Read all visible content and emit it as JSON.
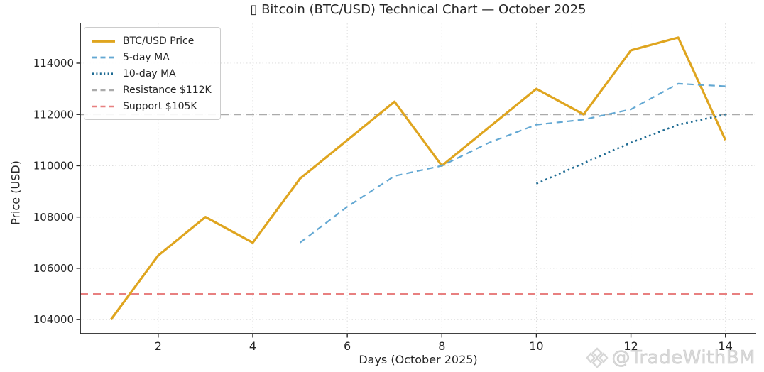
{
  "page": {
    "title": "▯ Bitcoin (BTC/USD) Technical Chart — October 2025"
  },
  "watermark": {
    "text": "@TradeWithBM",
    "icon": "diamond-logo"
  },
  "chart_data": {
    "type": "line",
    "title": "▯ Bitcoin (BTC/USD) Technical Chart — October 2025",
    "xlabel": "Days (October 2025)",
    "ylabel": "Price (USD)",
    "xlim": [
      0.35,
      14.65
    ],
    "ylim": [
      103450,
      115550
    ],
    "x_ticks": [
      2,
      4,
      6,
      8,
      10,
      12,
      14
    ],
    "y_ticks": [
      104000,
      106000,
      108000,
      110000,
      112000,
      114000
    ],
    "grid": true,
    "grid_color": "#cfcfcf",
    "axis_color": "#262626",
    "legend_position": "upper left",
    "series": [
      {
        "name": "BTC/USD Price",
        "color": "#DFA51F",
        "style": "solid",
        "width": 3.2,
        "x": [
          1,
          2,
          3,
          4,
          5,
          6,
          7,
          8,
          9,
          10,
          11,
          12,
          13,
          14
        ],
        "y": [
          104000,
          106500,
          108000,
          107000,
          109500,
          111000,
          112500,
          110000,
          111500,
          113000,
          112000,
          114500,
          115000,
          111000
        ]
      },
      {
        "name": "5-day MA",
        "color": "#63A8D3",
        "style": "dashed",
        "width": 2.2,
        "x": [
          5,
          6,
          7,
          8,
          9,
          10,
          11,
          12,
          13,
          14
        ],
        "y": [
          107000,
          108400,
          109600,
          110000,
          110900,
          111600,
          111800,
          112200,
          113200,
          113100
        ]
      },
      {
        "name": "10-day MA",
        "color": "#1E6B93",
        "style": "dotted",
        "width": 2.6,
        "x": [
          10,
          11,
          12,
          13,
          14
        ],
        "y": [
          109300,
          110100,
          110900,
          111600,
          112000
        ]
      }
    ],
    "hlines": [
      {
        "name": "Resistance $112K",
        "y": 112000,
        "color": "#ABABAB",
        "style": "dashed",
        "width": 2
      },
      {
        "name": "Support $105K",
        "y": 105000,
        "color": "#E88080",
        "style": "dashed",
        "width": 2
      }
    ]
  }
}
